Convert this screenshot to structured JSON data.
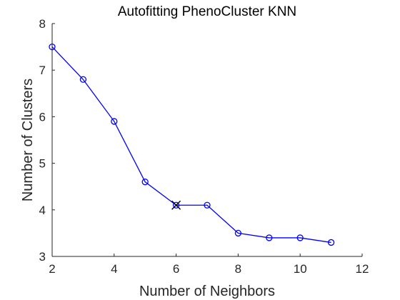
{
  "chart_data": {
    "type": "line",
    "title": "Autofitting PhenoCluster KNN",
    "xlabel": "Number of Neighbors",
    "ylabel": "Number of Clusters",
    "xlim": [
      2,
      12
    ],
    "ylim": [
      3,
      8
    ],
    "xticks": [
      "2",
      "4",
      "6",
      "8",
      "10",
      "12"
    ],
    "yticks": [
      "3",
      "4",
      "5",
      "6",
      "7",
      "8"
    ],
    "grid": false,
    "legend": "none",
    "series": [
      {
        "marker": "circle",
        "color": "#0000ff",
        "x": [
          2,
          3,
          4,
          5,
          6,
          7,
          8,
          9,
          10,
          11
        ],
        "y": [
          7.5,
          6.8,
          5.9,
          4.6,
          4.1,
          4.1,
          3.5,
          3.4,
          3.4,
          3.3
        ]
      }
    ],
    "highlight": {
      "marker": "x",
      "color": "#000000",
      "x": 6,
      "y": 4.1
    }
  }
}
